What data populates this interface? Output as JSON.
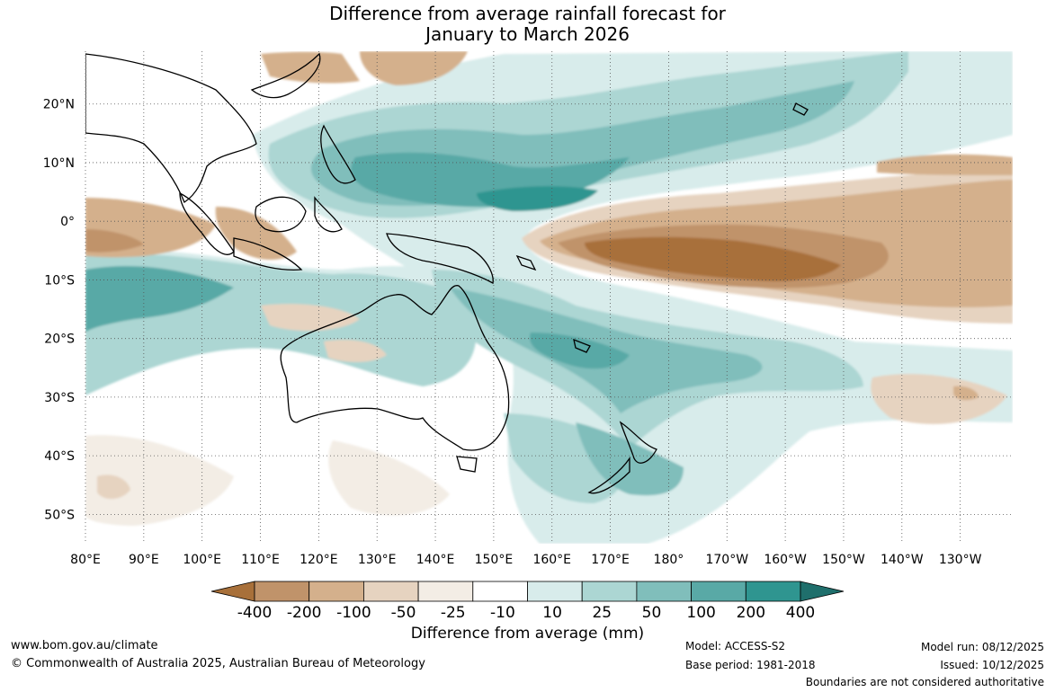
{
  "title": {
    "line1": "Difference from average rainfall forecast for",
    "line2": "January to March 2026"
  },
  "map": {
    "region": "Australia and the western/central Pacific",
    "lat_labels": [
      "20°N",
      "10°N",
      "0°",
      "10°S",
      "20°S",
      "30°S",
      "40°S",
      "50°S"
    ],
    "lon_labels": [
      "80°E",
      "90°E",
      "100°E",
      "110°E",
      "120°E",
      "130°E",
      "140°E",
      "150°E",
      "160°E",
      "170°E",
      "180°",
      "170°W",
      "160°W",
      "150°W",
      "140°W",
      "130°W"
    ],
    "lat_range_deg": [
      -55,
      29
    ],
    "lon_range_deg_east": [
      80,
      239
    ]
  },
  "colorbar": {
    "tick_labels": [
      "-400",
      "-200",
      "-100",
      "-50",
      "-25",
      "-10",
      "10",
      "25",
      "50",
      "100",
      "200",
      "400"
    ],
    "colors": [
      "#a8703a",
      "#c0936a",
      "#d4b08c",
      "#e6d3c0",
      "#f3ede5",
      "#ffffff",
      "#d8eceb",
      "#acd6d3",
      "#80bebb",
      "#59a9a6",
      "#2f9590",
      "#1f6f6c"
    ],
    "label": "Difference from average (mm)"
  },
  "footer": {
    "website": "www.bom.gov.au/climate",
    "copyright": "© Commonwealth of Australia 2025, Australian Bureau of Meteorology",
    "model": "Model: ACCESS-S2",
    "base_period": "Base period: 1981-2018",
    "model_run": "Model run: 08/12/2025",
    "issued": "Issued: 10/12/2025",
    "disclaimer": "Boundaries are not considered authoritative"
  }
}
